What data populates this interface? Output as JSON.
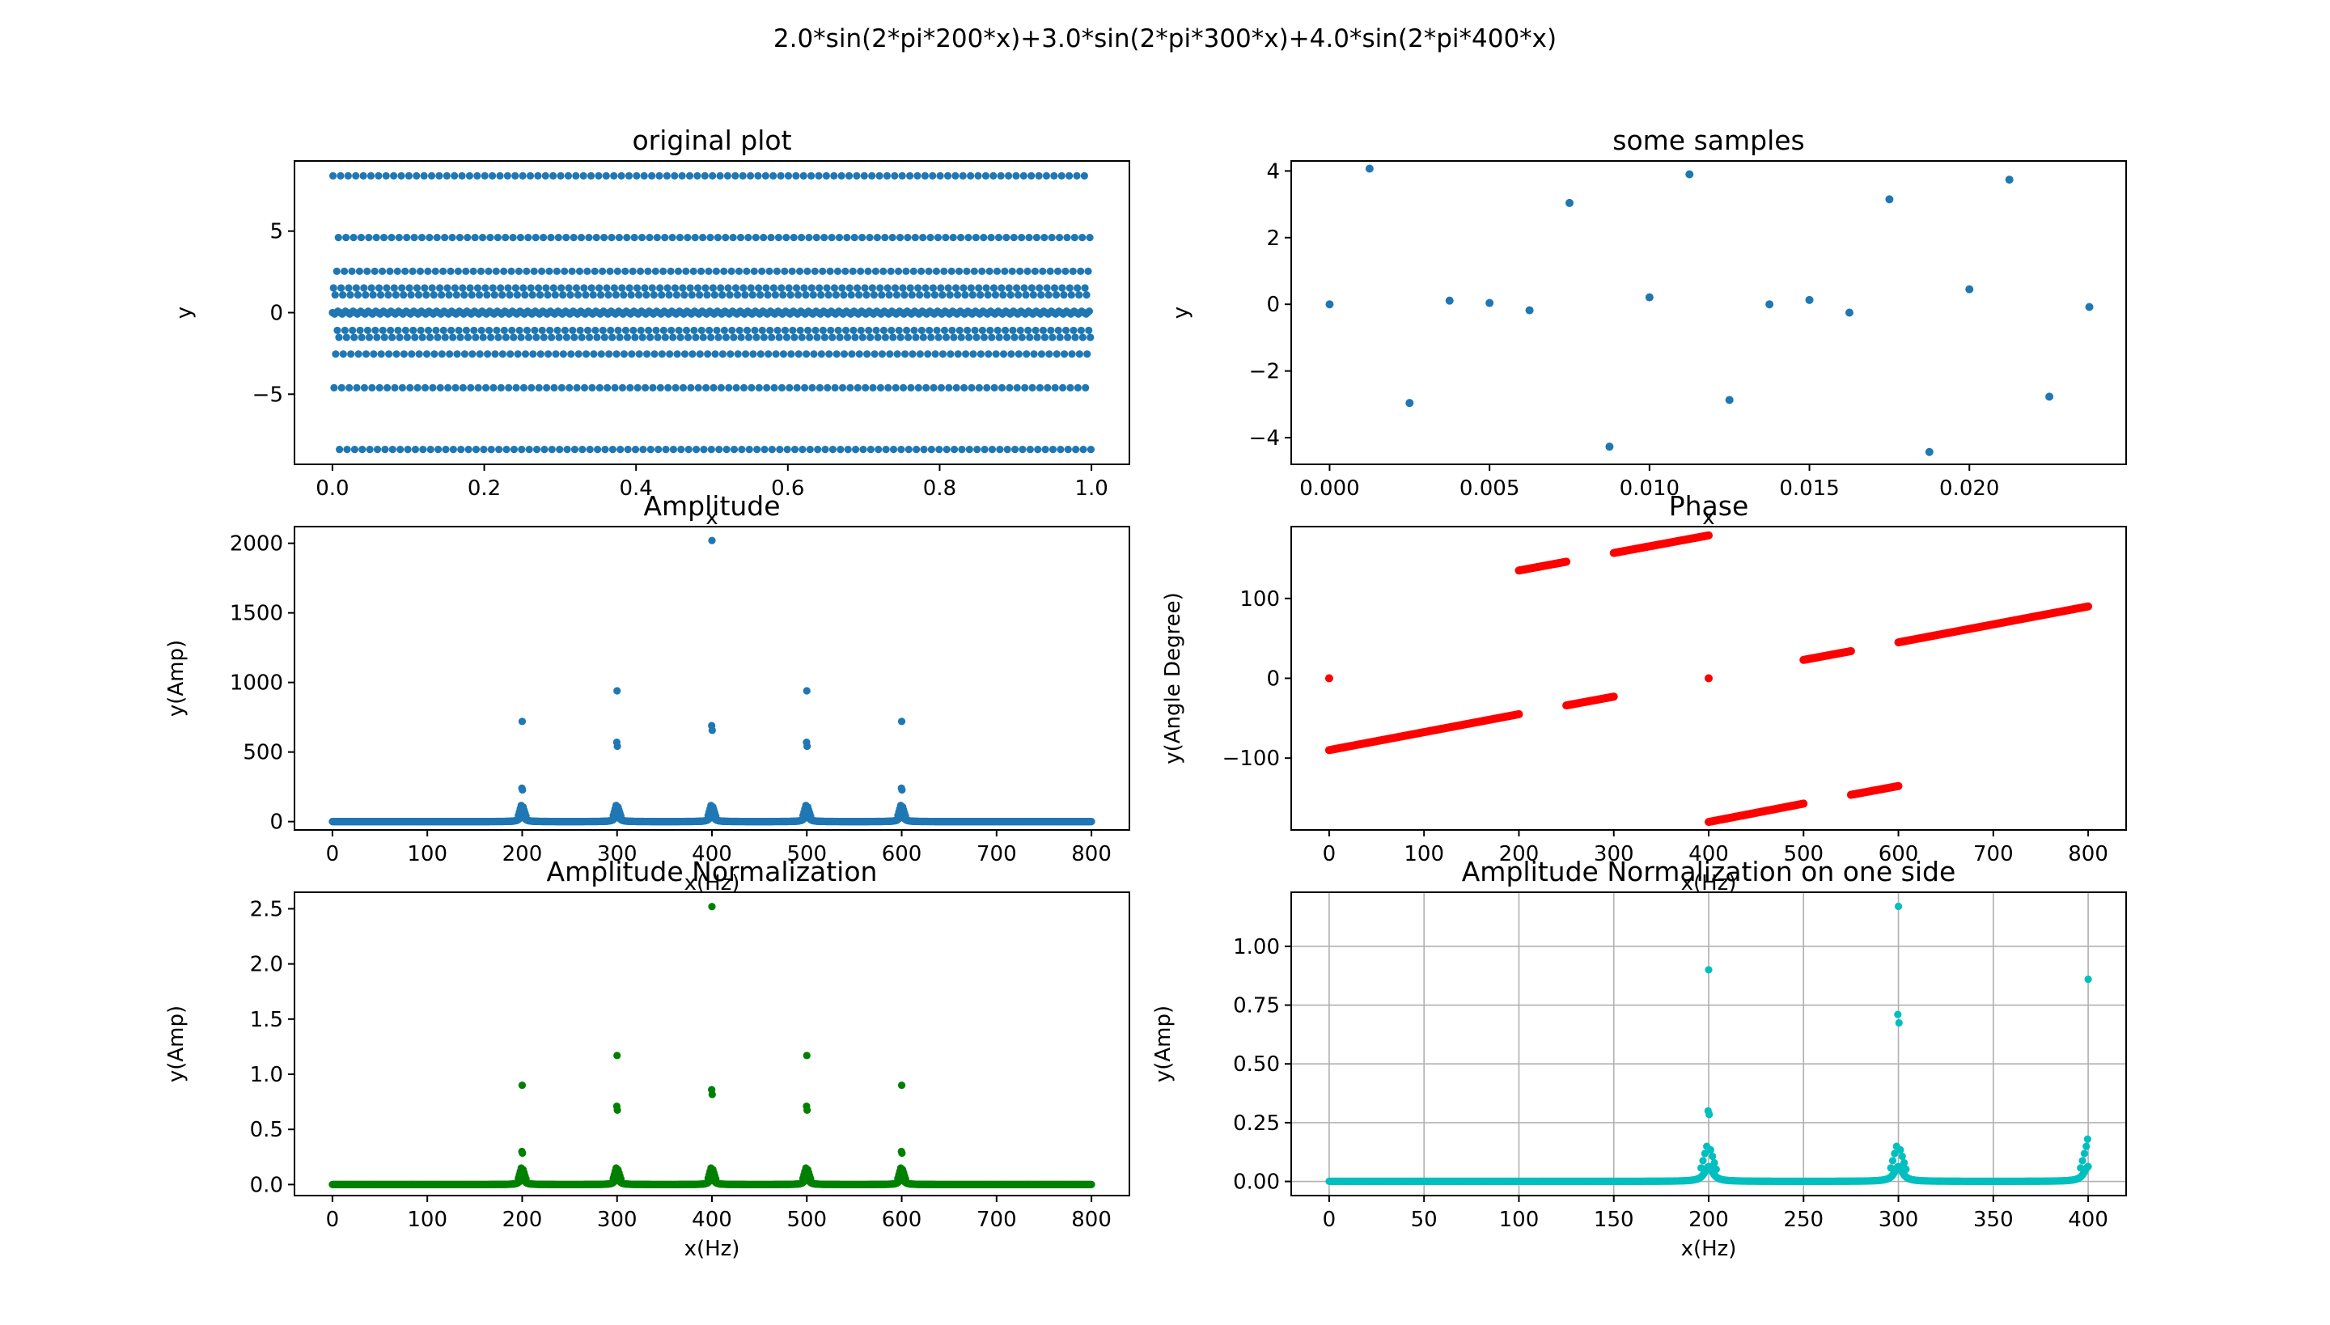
{
  "figure_title": "2.0*sin(2*pi*200*x)+3.0*sin(2*pi*300*x)+4.0*sin(2*pi*400*x)",
  "chart_data": [
    {
      "id": "original",
      "type": "scatter",
      "title": "original plot",
      "xlabel": "x",
      "ylabel": "y",
      "xlim": [
        -0.05,
        1.05
      ],
      "ylim": [
        -9.3,
        9.3
      ],
      "xticks": [
        0.0,
        0.2,
        0.4,
        0.6,
        0.8,
        1.0
      ],
      "xtick_labels": [
        "0.0",
        "0.2",
        "0.4",
        "0.6",
        "0.8",
        "1.0"
      ],
      "yticks": [
        -5,
        0,
        5
      ],
      "ytick_labels": [
        "−5",
        "0",
        "5"
      ],
      "color": "#1f77b4",
      "grid": false,
      "generator": {
        "kind": "signal",
        "amps": [
          2.0,
          3.0,
          4.0
        ],
        "freqs": [
          200,
          300,
          400
        ],
        "n": 1400,
        "x_range": [
          0,
          1
        ],
        "fs": 1400
      }
    },
    {
      "id": "samples",
      "type": "scatter",
      "title": "some samples",
      "xlabel": "x",
      "ylabel": "y",
      "xlim": [
        -0.0012,
        0.0249
      ],
      "ylim": [
        -4.8,
        4.3
      ],
      "xticks": [
        0.0,
        0.005,
        0.01,
        0.015,
        0.02
      ],
      "xtick_labels": [
        "0.000",
        "0.005",
        "0.010",
        "0.015",
        "0.020"
      ],
      "yticks": [
        -4,
        -2,
        0,
        2,
        4
      ],
      "ytick_labels": [
        "−4",
        "−2",
        "0",
        "2",
        "4"
      ],
      "color": "#1f77b4",
      "grid": false,
      "x": [
        0.0,
        0.00125,
        0.0025,
        0.00375,
        0.005,
        0.00625,
        0.0075,
        0.00875,
        0.01,
        0.01125,
        0.0125,
        0.01375,
        0.015,
        0.01625,
        0.0175,
        0.01875,
        0.02,
        0.02125,
        0.0225,
        0.02375
      ],
      "y": [
        0.0,
        4.07,
        -2.96,
        0.11,
        0.04,
        -0.18,
        3.04,
        -4.27,
        0.21,
        3.9,
        -2.87,
        0.0,
        0.13,
        -0.25,
        3.15,
        -4.43,
        0.45,
        3.74,
        -2.77,
        -0.08
      ]
    },
    {
      "id": "amplitude",
      "type": "scatter",
      "title": "Amplitude",
      "xlabel": "x(Hz)",
      "ylabel": "y(Amp)",
      "xlim": [
        -40,
        840
      ],
      "ylim": [
        -60,
        2120
      ],
      "xticks": [
        0,
        100,
        200,
        300,
        400,
        500,
        600,
        700,
        800
      ],
      "xtick_labels": [
        "0",
        "100",
        "200",
        "300",
        "400",
        "500",
        "600",
        "700",
        "800"
      ],
      "yticks": [
        0,
        500,
        1000,
        1500,
        2000
      ],
      "ytick_labels": [
        "0",
        "500",
        "1000",
        "1500",
        "2000"
      ],
      "color": "#1f77b4",
      "grid": false,
      "generator": {
        "kind": "spectrum",
        "x_range": [
          0,
          800
        ],
        "peaks": [
          200,
          300,
          400,
          500,
          600
        ],
        "peak_heights": [
          720,
          940,
          2020,
          940,
          720
        ],
        "second_heights": [
          240,
          570,
          690,
          570,
          240
        ],
        "shoulder": 140,
        "scale": 1
      }
    },
    {
      "id": "phase",
      "type": "scatter",
      "title": "Phase",
      "xlabel": "x(Hz)",
      "ylabel": "y(Angle Degree)",
      "xlim": [
        -40,
        840
      ],
      "ylim": [
        -190,
        190
      ],
      "xticks": [
        0,
        100,
        200,
        300,
        400,
        500,
        600,
        700,
        800
      ],
      "xtick_labels": [
        "0",
        "100",
        "200",
        "300",
        "400",
        "500",
        "600",
        "700",
        "800"
      ],
      "yticks": [
        -100,
        0,
        100
      ],
      "ytick_labels": [
        "−100",
        "0",
        "100"
      ],
      "color": "#ff0000",
      "grid": false,
      "segments": [
        {
          "x0": 0,
          "x1": 200,
          "y0": -90,
          "y1": -45
        },
        {
          "x0": 200,
          "x1": 250,
          "y0": 135,
          "y1": 146
        },
        {
          "x0": 250,
          "x1": 300,
          "y0": -34,
          "y1": -23
        },
        {
          "x0": 300,
          "x1": 400,
          "y0": 157,
          "y1": 179
        },
        {
          "x0": 400,
          "x1": 500,
          "y0": -180,
          "y1": -157
        },
        {
          "x0": 500,
          "x1": 550,
          "y0": 23,
          "y1": 34
        },
        {
          "x0": 550,
          "x1": 600,
          "y0": -146,
          "y1": -135
        },
        {
          "x0": 600,
          "x1": 800,
          "y0": 45,
          "y1": 90
        }
      ],
      "isolated": [
        {
          "x": 0,
          "y": 0
        },
        {
          "x": 400,
          "y": 0
        }
      ]
    },
    {
      "id": "amp_norm",
      "type": "scatter",
      "title": "Amplitude Normalization",
      "xlabel": "x(Hz)",
      "ylabel": "y(Amp)",
      "xlim": [
        -40,
        840
      ],
      "ylim": [
        -0.1,
        2.65
      ],
      "xticks": [
        0,
        100,
        200,
        300,
        400,
        500,
        600,
        700,
        800
      ],
      "xtick_labels": [
        "0",
        "100",
        "200",
        "300",
        "400",
        "500",
        "600",
        "700",
        "800"
      ],
      "yticks": [
        0.0,
        0.5,
        1.0,
        1.5,
        2.0,
        2.5
      ],
      "ytick_labels": [
        "0.0",
        "0.5",
        "1.0",
        "1.5",
        "2.0",
        "2.5"
      ],
      "color": "#008000",
      "grid": false,
      "generator": {
        "kind": "spectrum",
        "x_range": [
          0,
          800
        ],
        "peaks": [
          200,
          300,
          400,
          500,
          600
        ],
        "peak_heights": [
          0.9,
          1.17,
          2.52,
          1.17,
          0.9
        ],
        "second_heights": [
          0.3,
          0.71,
          0.86,
          0.71,
          0.3
        ],
        "shoulder": 0.18,
        "scale": 1
      }
    },
    {
      "id": "amp_norm_one",
      "type": "scatter",
      "title": "Amplitude Normalization on one side",
      "xlabel": "x(Hz)",
      "ylabel": "y(Amp)",
      "xlim": [
        -20,
        420
      ],
      "ylim": [
        -0.06,
        1.23
      ],
      "xticks": [
        0,
        50,
        100,
        150,
        200,
        250,
        300,
        350,
        400
      ],
      "xtick_labels": [
        "0",
        "50",
        "100",
        "150",
        "200",
        "250",
        "300",
        "350",
        "400"
      ],
      "yticks": [
        0.0,
        0.25,
        0.5,
        0.75,
        1.0
      ],
      "ytick_labels": [
        "0.00",
        "0.25",
        "0.50",
        "0.75",
        "1.00"
      ],
      "color": "#00bfbf",
      "grid": true,
      "generator": {
        "kind": "spectrum",
        "x_range": [
          0,
          400
        ],
        "peaks": [
          200,
          300,
          400
        ],
        "peak_heights": [
          0.9,
          1.17,
          0.86
        ],
        "second_heights": [
          0.3,
          0.71,
          0.18
        ],
        "shoulder": 0.18,
        "scale": 1
      }
    }
  ]
}
